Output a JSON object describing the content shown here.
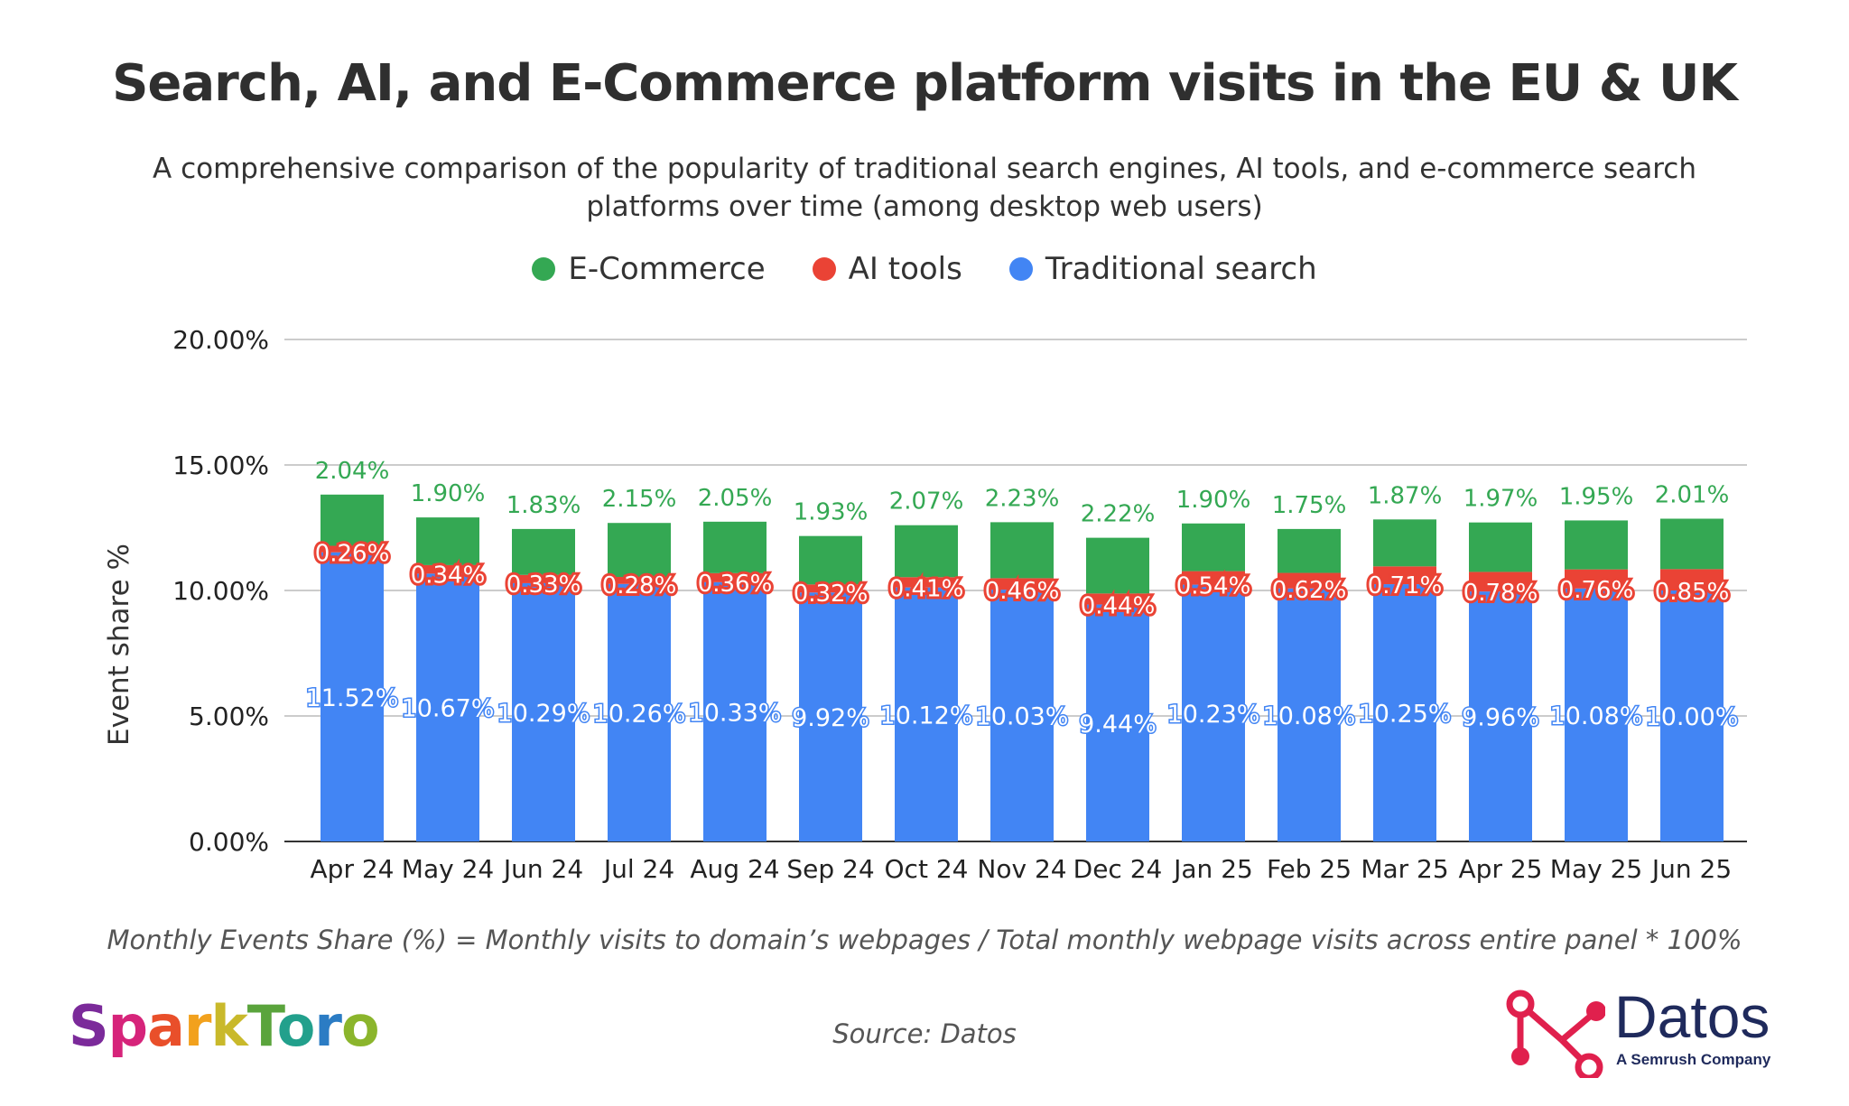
{
  "header": {
    "title": "Search, AI, and E-Commerce platform visits in the EU & UK",
    "subtitle_line1": "A comprehensive comparison of the popularity of traditional search engines, AI tools, and e-commerce search",
    "subtitle_line2": "platforms over time (among desktop web users)"
  },
  "legend": {
    "ecommerce": "E-Commerce",
    "ai_tools": "AI tools",
    "traditional": "Traditional search"
  },
  "colors": {
    "ecommerce": "#34a853",
    "ai_tools": "#ea4335",
    "traditional": "#4285f4",
    "grid": "#cccccc"
  },
  "chart_data": {
    "type": "bar",
    "stacked": true,
    "title": "Search, AI, and E-Commerce platform visits in the EU & UK",
    "xlabel": "",
    "ylabel": "Event share %",
    "ylim": [
      0,
      20
    ],
    "y_ticks": [
      "0.00%",
      "5.00%",
      "10.00%",
      "15.00%",
      "20.00%"
    ],
    "categories": [
      "Apr 24",
      "May 24",
      "Jun 24",
      "Jul 24",
      "Aug 24",
      "Sep 24",
      "Oct 24",
      "Nov 24",
      "Dec 24",
      "Jan 25",
      "Feb 25",
      "Mar 25",
      "Apr 25",
      "May 25",
      "Jun 25"
    ],
    "series": [
      {
        "name": "Traditional search",
        "values": [
          11.52,
          10.67,
          10.29,
          10.26,
          10.33,
          9.92,
          10.12,
          10.03,
          9.44,
          10.23,
          10.08,
          10.25,
          9.96,
          10.08,
          10.0
        ]
      },
      {
        "name": "AI tools",
        "values": [
          0.26,
          0.34,
          0.33,
          0.28,
          0.36,
          0.32,
          0.41,
          0.46,
          0.44,
          0.54,
          0.62,
          0.71,
          0.78,
          0.76,
          0.85
        ]
      },
      {
        "name": "E-Commerce",
        "values": [
          2.04,
          1.9,
          1.83,
          2.15,
          2.05,
          1.93,
          2.07,
          2.23,
          2.22,
          1.9,
          1.75,
          1.87,
          1.97,
          1.95,
          2.01
        ]
      }
    ],
    "legend_position": "top"
  },
  "footer": {
    "formula": "Monthly Events Share (%) = Monthly visits to domain’s webpages / Total monthly webpage visits across entire panel * 100%",
    "source": "Source: Datos"
  },
  "brands": {
    "left_logo": "SparkToro",
    "right_logo_name": "Datos",
    "right_logo_tagline": "A Semrush Company"
  }
}
